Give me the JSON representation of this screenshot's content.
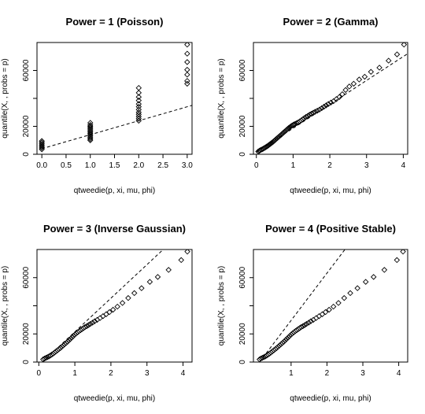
{
  "chart_data": [
    {
      "type": "scatter",
      "title": "Power = 1 (Poisson)",
      "xlabel": "qtweedie(p, xi, mu, phi)",
      "ylabel": "quantile(X, , probs = p)",
      "xlim": [
        -0.1,
        3.1
      ],
      "ylim": [
        0,
        80000
      ],
      "xticks": [
        0.0,
        0.5,
        1.0,
        1.5,
        2.0,
        2.5,
        3.0
      ],
      "xtick_labels": [
        "0.0",
        "0.5",
        "1.0",
        "1.5",
        "2.0",
        "2.5",
        "3.0"
      ],
      "yticks": [
        0,
        20000,
        40000,
        60000
      ],
      "ytick_labels": [
        "0",
        "20000",
        "",
        "60000"
      ],
      "marker": "open-diamond",
      "reference_line": {
        "style": "dashed",
        "from": [
          0,
          4000
        ],
        "to": [
          3.1,
          35000
        ]
      },
      "points": [
        [
          0,
          3500
        ],
        [
          0,
          4500
        ],
        [
          0,
          5500
        ],
        [
          0,
          6500
        ],
        [
          0,
          7500
        ],
        [
          0,
          8500
        ],
        [
          0,
          9500
        ],
        [
          1,
          10000
        ],
        [
          1,
          11000
        ],
        [
          1,
          12000
        ],
        [
          1,
          13000
        ],
        [
          1,
          14000
        ],
        [
          1,
          15000
        ],
        [
          1,
          16000
        ],
        [
          1,
          17000
        ],
        [
          1,
          18000
        ],
        [
          1,
          19000
        ],
        [
          1,
          20000
        ],
        [
          1,
          21000
        ],
        [
          1,
          22500
        ],
        [
          2,
          24000
        ],
        [
          2,
          25500
        ],
        [
          2,
          27000
        ],
        [
          2,
          28500
        ],
        [
          2,
          30000
        ],
        [
          2,
          32000
        ],
        [
          2,
          34000
        ],
        [
          2,
          36000
        ],
        [
          2,
          38500
        ],
        [
          2,
          41000
        ],
        [
          2,
          44000
        ],
        [
          2,
          47500
        ],
        [
          3,
          50500
        ],
        [
          3,
          52500
        ],
        [
          3,
          57000
        ],
        [
          3,
          60500
        ],
        [
          3,
          66000
        ],
        [
          3,
          72000
        ],
        [
          3,
          78500
        ]
      ]
    },
    {
      "type": "scatter",
      "title": "Power = 2 (Gamma)",
      "xlabel": "qtweedie(p, xi, mu, phi)",
      "ylabel": "quantile(X, , probs = p)",
      "xlim": [
        -0.08,
        4.12
      ],
      "ylim": [
        0,
        80000
      ],
      "xticks": [
        0,
        1,
        2,
        3,
        4
      ],
      "xtick_labels": [
        "0",
        "1",
        "2",
        "3",
        "4"
      ],
      "yticks": [
        0,
        20000,
        40000,
        60000
      ],
      "ytick_labels": [
        "0",
        "20000",
        "",
        "60000"
      ],
      "marker": "open-diamond",
      "reference_line": {
        "style": "dashed",
        "from": [
          0,
          1500
        ],
        "to": [
          4.12,
          72000
        ]
      },
      "points": [
        [
          0.05,
          2000
        ],
        [
          0.08,
          2400
        ],
        [
          0.1,
          2800
        ],
        [
          0.13,
          3200
        ],
        [
          0.16,
          3600
        ],
        [
          0.19,
          4000
        ],
        [
          0.22,
          4500
        ],
        [
          0.25,
          5000
        ],
        [
          0.28,
          5500
        ],
        [
          0.31,
          6000
        ],
        [
          0.34,
          6600
        ],
        [
          0.37,
          7200
        ],
        [
          0.4,
          7800
        ],
        [
          0.43,
          8400
        ],
        [
          0.46,
          9000
        ],
        [
          0.49,
          9700
        ],
        [
          0.52,
          10400
        ],
        [
          0.55,
          11100
        ],
        [
          0.58,
          11800
        ],
        [
          0.61,
          12500
        ],
        [
          0.64,
          13200
        ],
        [
          0.67,
          13900
        ],
        [
          0.7,
          14600
        ],
        [
          0.73,
          15300
        ],
        [
          0.76,
          16000
        ],
        [
          0.79,
          16700
        ],
        [
          0.82,
          17400
        ],
        [
          0.85,
          18100
        ],
        [
          0.88,
          18800
        ],
        [
          0.91,
          19400
        ],
        [
          0.94,
          20000
        ],
        [
          0.97,
          20500
        ],
        [
          1.0,
          21000
        ],
        [
          1.03,
          21400
        ],
        [
          1.06,
          21800
        ],
        [
          1.1,
          22300
        ],
        [
          1.14,
          22800
        ],
        [
          1.18,
          23500
        ],
        [
          1.22,
          24200
        ],
        [
          1.26,
          25000
        ],
        [
          1.3,
          25800
        ],
        [
          1.35,
          26700
        ],
        [
          1.4,
          27500
        ],
        [
          1.45,
          28300
        ],
        [
          1.5,
          29000
        ],
        [
          1.55,
          29700
        ],
        [
          1.6,
          30400
        ],
        [
          1.66,
          31200
        ],
        [
          1.72,
          32000
        ],
        [
          1.78,
          33000
        ],
        [
          1.84,
          34000
        ],
        [
          1.9,
          35000
        ],
        [
          1.96,
          36000
        ],
        [
          2.03,
          37000
        ],
        [
          2.1,
          38000
        ],
        [
          2.18,
          39500
        ],
        [
          2.26,
          41000
        ],
        [
          2.34,
          43000
        ],
        [
          2.43,
          46000
        ],
        [
          2.53,
          48500
        ],
        [
          2.65,
          50500
        ],
        [
          2.8,
          53500
        ],
        [
          2.95,
          55500
        ],
        [
          3.12,
          59000
        ],
        [
          3.35,
          62000
        ],
        [
          3.6,
          67000
        ],
        [
          3.83,
          71500
        ],
        [
          4.02,
          78500
        ]
      ]
    },
    {
      "type": "scatter",
      "title": "Power = 3 (Inverse Gaussian)",
      "xlabel": "qtweedie(p, xi, mu, phi)",
      "ylabel": "quantile(X, , probs = p)",
      "xlim": [
        -0.05,
        4.25
      ],
      "ylim": [
        0,
        80000
      ],
      "xticks": [
        0,
        1,
        2,
        3,
        4
      ],
      "xtick_labels": [
        "0",
        "1",
        "2",
        "3",
        "4"
      ],
      "yticks": [
        0,
        20000,
        40000,
        60000
      ],
      "ytick_labels": [
        "0",
        "20000",
        "",
        "60000"
      ],
      "marker": "open-diamond",
      "reference_line": {
        "style": "dashed",
        "from": [
          0.1,
          0
        ],
        "to": [
          3.45,
          80000
        ]
      },
      "points": [
        [
          0.12,
          1900
        ],
        [
          0.16,
          2500
        ],
        [
          0.2,
          3000
        ],
        [
          0.24,
          3500
        ],
        [
          0.28,
          4000
        ],
        [
          0.32,
          4600
        ],
        [
          0.36,
          5300
        ],
        [
          0.4,
          6000
        ],
        [
          0.44,
          6800
        ],
        [
          0.48,
          7600
        ],
        [
          0.52,
          8400
        ],
        [
          0.56,
          9200
        ],
        [
          0.6,
          10000
        ],
        [
          0.64,
          10900
        ],
        [
          0.68,
          11800
        ],
        [
          0.72,
          12700
        ],
        [
          0.76,
          13600
        ],
        [
          0.8,
          14500
        ],
        [
          0.84,
          15500
        ],
        [
          0.88,
          16500
        ],
        [
          0.92,
          17500
        ],
        [
          0.96,
          18500
        ],
        [
          1.0,
          19500
        ],
        [
          1.04,
          20400
        ],
        [
          1.08,
          21200
        ],
        [
          1.12,
          22000
        ],
        [
          1.16,
          22700
        ],
        [
          1.2,
          23400
        ],
        [
          1.24,
          24100
        ],
        [
          1.28,
          24800
        ],
        [
          1.33,
          25500
        ],
        [
          1.38,
          26300
        ],
        [
          1.43,
          27100
        ],
        [
          1.49,
          28000
        ],
        [
          1.55,
          29000
        ],
        [
          1.62,
          30000
        ],
        [
          1.7,
          31300
        ],
        [
          1.78,
          32600
        ],
        [
          1.87,
          34000
        ],
        [
          1.96,
          35500
        ],
        [
          2.06,
          37200
        ],
        [
          2.18,
          39400
        ],
        [
          2.32,
          42000
        ],
        [
          2.48,
          45500
        ],
        [
          2.65,
          49000
        ],
        [
          2.85,
          52500
        ],
        [
          3.08,
          57000
        ],
        [
          3.3,
          60500
        ],
        [
          3.6,
          65500
        ],
        [
          3.95,
          72500
        ],
        [
          4.12,
          78500
        ]
      ]
    },
    {
      "type": "scatter",
      "title": "Power = 4 (Positive Stable)",
      "xlabel": "qtweedie(p, xi, mu, phi)",
      "ylabel": "quantile(X, , probs = p)",
      "xlim": [
        -0.05,
        4.25
      ],
      "ylim": [
        0,
        80000
      ],
      "xticks": [
        1,
        2,
        3,
        4
      ],
      "xtick_labels": [
        "1",
        "2",
        "3",
        "4"
      ],
      "yticks": [
        0,
        20000,
        40000,
        60000
      ],
      "ytick_labels": [
        "0",
        "20000",
        "",
        "60000"
      ],
      "marker": "open-diamond",
      "reference_line": {
        "style": "dashed",
        "from": [
          0.12,
          0
        ],
        "to": [
          2.5,
          80000
        ]
      },
      "points": [
        [
          0.12,
          1900
        ],
        [
          0.16,
          2500
        ],
        [
          0.2,
          3000
        ],
        [
          0.24,
          3500
        ],
        [
          0.28,
          4000
        ],
        [
          0.32,
          4600
        ],
        [
          0.36,
          5300
        ],
        [
          0.4,
          6000
        ],
        [
          0.44,
          6800
        ],
        [
          0.48,
          7600
        ],
        [
          0.52,
          8400
        ],
        [
          0.56,
          9200
        ],
        [
          0.6,
          10000
        ],
        [
          0.64,
          10900
        ],
        [
          0.68,
          11800
        ],
        [
          0.72,
          12700
        ],
        [
          0.76,
          13600
        ],
        [
          0.8,
          14500
        ],
        [
          0.84,
          15500
        ],
        [
          0.88,
          16500
        ],
        [
          0.92,
          17500
        ],
        [
          0.96,
          18500
        ],
        [
          1.0,
          19500
        ],
        [
          1.04,
          20400
        ],
        [
          1.08,
          21200
        ],
        [
          1.12,
          22000
        ],
        [
          1.16,
          22700
        ],
        [
          1.2,
          23400
        ],
        [
          1.24,
          24100
        ],
        [
          1.28,
          24800
        ],
        [
          1.33,
          25500
        ],
        [
          1.38,
          26300
        ],
        [
          1.43,
          27100
        ],
        [
          1.49,
          28000
        ],
        [
          1.55,
          29000
        ],
        [
          1.62,
          30000
        ],
        [
          1.7,
          31300
        ],
        [
          1.78,
          32600
        ],
        [
          1.87,
          34000
        ],
        [
          1.96,
          35500
        ],
        [
          2.06,
          37200
        ],
        [
          2.18,
          39400
        ],
        [
          2.32,
          42000
        ],
        [
          2.48,
          45500
        ],
        [
          2.65,
          49000
        ],
        [
          2.85,
          52500
        ],
        [
          3.08,
          57000
        ],
        [
          3.3,
          60500
        ],
        [
          3.6,
          65500
        ],
        [
          3.95,
          72500
        ],
        [
          4.12,
          78500
        ]
      ]
    }
  ]
}
